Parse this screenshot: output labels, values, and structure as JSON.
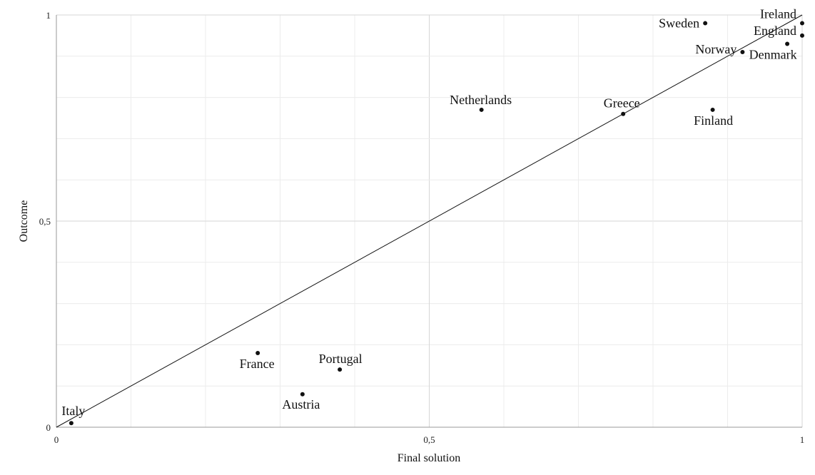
{
  "chart_data": {
    "type": "scatter",
    "title": "",
    "xlabel": "Final solution",
    "ylabel": "Outcome",
    "xlim": [
      0,
      1
    ],
    "ylim": [
      0,
      1
    ],
    "x_ticks": [
      "0",
      "0,5",
      "1"
    ],
    "y_ticks": [
      "0",
      "0,5",
      "1"
    ],
    "grid": true,
    "reference_line": {
      "from": [
        0,
        0
      ],
      "to": [
        1,
        1
      ]
    },
    "points": [
      {
        "label": "Ireland",
        "x": 1.0,
        "y": 0.98
      },
      {
        "label": "England",
        "x": 1.0,
        "y": 0.95
      },
      {
        "label": "Denmark",
        "x": 0.98,
        "y": 0.93
      },
      {
        "label": "Sweden",
        "x": 0.87,
        "y": 0.98
      },
      {
        "label": "Norway",
        "x": 0.92,
        "y": 0.91
      },
      {
        "label": "Finland",
        "x": 0.88,
        "y": 0.77
      },
      {
        "label": "Greece",
        "x": 0.76,
        "y": 0.76
      },
      {
        "label": "Netherlands",
        "x": 0.57,
        "y": 0.77
      },
      {
        "label": "Portugal",
        "x": 0.38,
        "y": 0.14
      },
      {
        "label": "France",
        "x": 0.27,
        "y": 0.18
      },
      {
        "label": "Austria",
        "x": 0.33,
        "y": 0.08
      },
      {
        "label": "Italy",
        "x": 0.02,
        "y": 0.01
      }
    ]
  }
}
